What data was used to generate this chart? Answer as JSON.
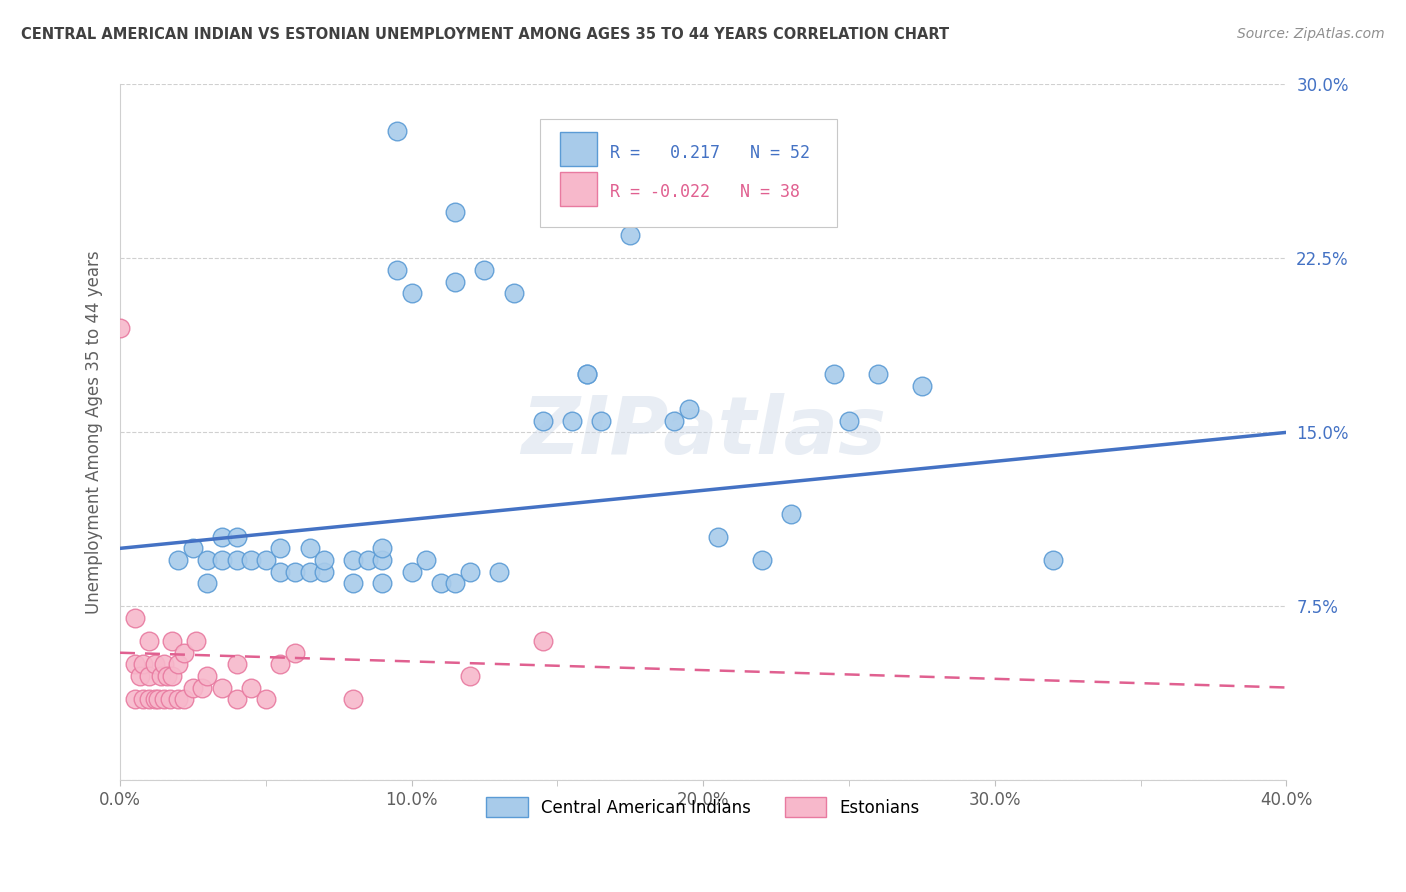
{
  "title": "CENTRAL AMERICAN INDIAN VS ESTONIAN UNEMPLOYMENT AMONG AGES 35 TO 44 YEARS CORRELATION CHART",
  "source": "Source: ZipAtlas.com",
  "ylabel": "Unemployment Among Ages 35 to 44 years",
  "xlim": [
    0.0,
    0.4
  ],
  "ylim": [
    0.0,
    0.3
  ],
  "xtick_labels": [
    "0.0%",
    "",
    "10.0%",
    "",
    "20.0%",
    "",
    "30.0%",
    "",
    "40.0%"
  ],
  "xtick_values": [
    0.0,
    0.05,
    0.1,
    0.15,
    0.2,
    0.25,
    0.3,
    0.35,
    0.4
  ],
  "ytick_labels": [
    "",
    "7.5%",
    "15.0%",
    "22.5%",
    "30.0%"
  ],
  "ytick_values": [
    0.0,
    0.075,
    0.15,
    0.225,
    0.3
  ],
  "blue_r": 0.217,
  "blue_n": 52,
  "pink_r": -0.022,
  "pink_n": 38,
  "blue_scatter_x": [
    0.095,
    0.095,
    0.1,
    0.115,
    0.115,
    0.125,
    0.135,
    0.145,
    0.155,
    0.16,
    0.16,
    0.165,
    0.175,
    0.19,
    0.195,
    0.205,
    0.22,
    0.23,
    0.245,
    0.25,
    0.26,
    0.02,
    0.025,
    0.03,
    0.03,
    0.035,
    0.035,
    0.04,
    0.04,
    0.045,
    0.05,
    0.055,
    0.055,
    0.06,
    0.065,
    0.065,
    0.07,
    0.07,
    0.08,
    0.08,
    0.085,
    0.09,
    0.09,
    0.09,
    0.1,
    0.105,
    0.11,
    0.115,
    0.12,
    0.13,
    0.275,
    0.32
  ],
  "blue_scatter_y": [
    0.28,
    0.22,
    0.21,
    0.245,
    0.215,
    0.22,
    0.21,
    0.155,
    0.155,
    0.175,
    0.175,
    0.155,
    0.235,
    0.155,
    0.16,
    0.105,
    0.095,
    0.115,
    0.175,
    0.155,
    0.175,
    0.095,
    0.1,
    0.085,
    0.095,
    0.095,
    0.105,
    0.095,
    0.105,
    0.095,
    0.095,
    0.09,
    0.1,
    0.09,
    0.09,
    0.1,
    0.09,
    0.095,
    0.085,
    0.095,
    0.095,
    0.085,
    0.095,
    0.1,
    0.09,
    0.095,
    0.085,
    0.085,
    0.09,
    0.09,
    0.17,
    0.095
  ],
  "pink_scatter_x": [
    0.0,
    0.005,
    0.005,
    0.005,
    0.007,
    0.008,
    0.008,
    0.01,
    0.01,
    0.01,
    0.012,
    0.012,
    0.013,
    0.014,
    0.015,
    0.015,
    0.016,
    0.017,
    0.018,
    0.018,
    0.02,
    0.02,
    0.022,
    0.022,
    0.025,
    0.026,
    0.028,
    0.03,
    0.035,
    0.04,
    0.04,
    0.045,
    0.05,
    0.055,
    0.06,
    0.08,
    0.12,
    0.145
  ],
  "pink_scatter_y": [
    0.195,
    0.035,
    0.05,
    0.07,
    0.045,
    0.035,
    0.05,
    0.035,
    0.045,
    0.06,
    0.035,
    0.05,
    0.035,
    0.045,
    0.035,
    0.05,
    0.045,
    0.035,
    0.045,
    0.06,
    0.035,
    0.05,
    0.035,
    0.055,
    0.04,
    0.06,
    0.04,
    0.045,
    0.04,
    0.035,
    0.05,
    0.04,
    0.035,
    0.05,
    0.055,
    0.035,
    0.045,
    0.06
  ],
  "blue_line_x": [
    0.0,
    0.4
  ],
  "blue_line_y": [
    0.1,
    0.15
  ],
  "pink_line_x": [
    0.0,
    0.4
  ],
  "pink_line_y": [
    0.055,
    0.04
  ],
  "blue_color": "#a8cbea",
  "pink_color": "#f7b8cb",
  "blue_edge_color": "#5b9bd5",
  "pink_edge_color": "#e87aa0",
  "blue_line_color": "#4472c4",
  "pink_line_color": "#e06090",
  "title_color": "#404040",
  "source_color": "#909090",
  "axis_color": "#606060",
  "grid_color": "#d0d0d0",
  "background_color": "#ffffff",
  "watermark_text": "ZIPatlas",
  "watermark_color": "#ccd8e8",
  "watermark_alpha": 0.45,
  "legend_label_blue": "R =   0.217   N = 52",
  "legend_label_pink": "R = -0.022   N = 38",
  "bottom_legend_blue": "Central American Indians",
  "bottom_legend_pink": "Estonians"
}
